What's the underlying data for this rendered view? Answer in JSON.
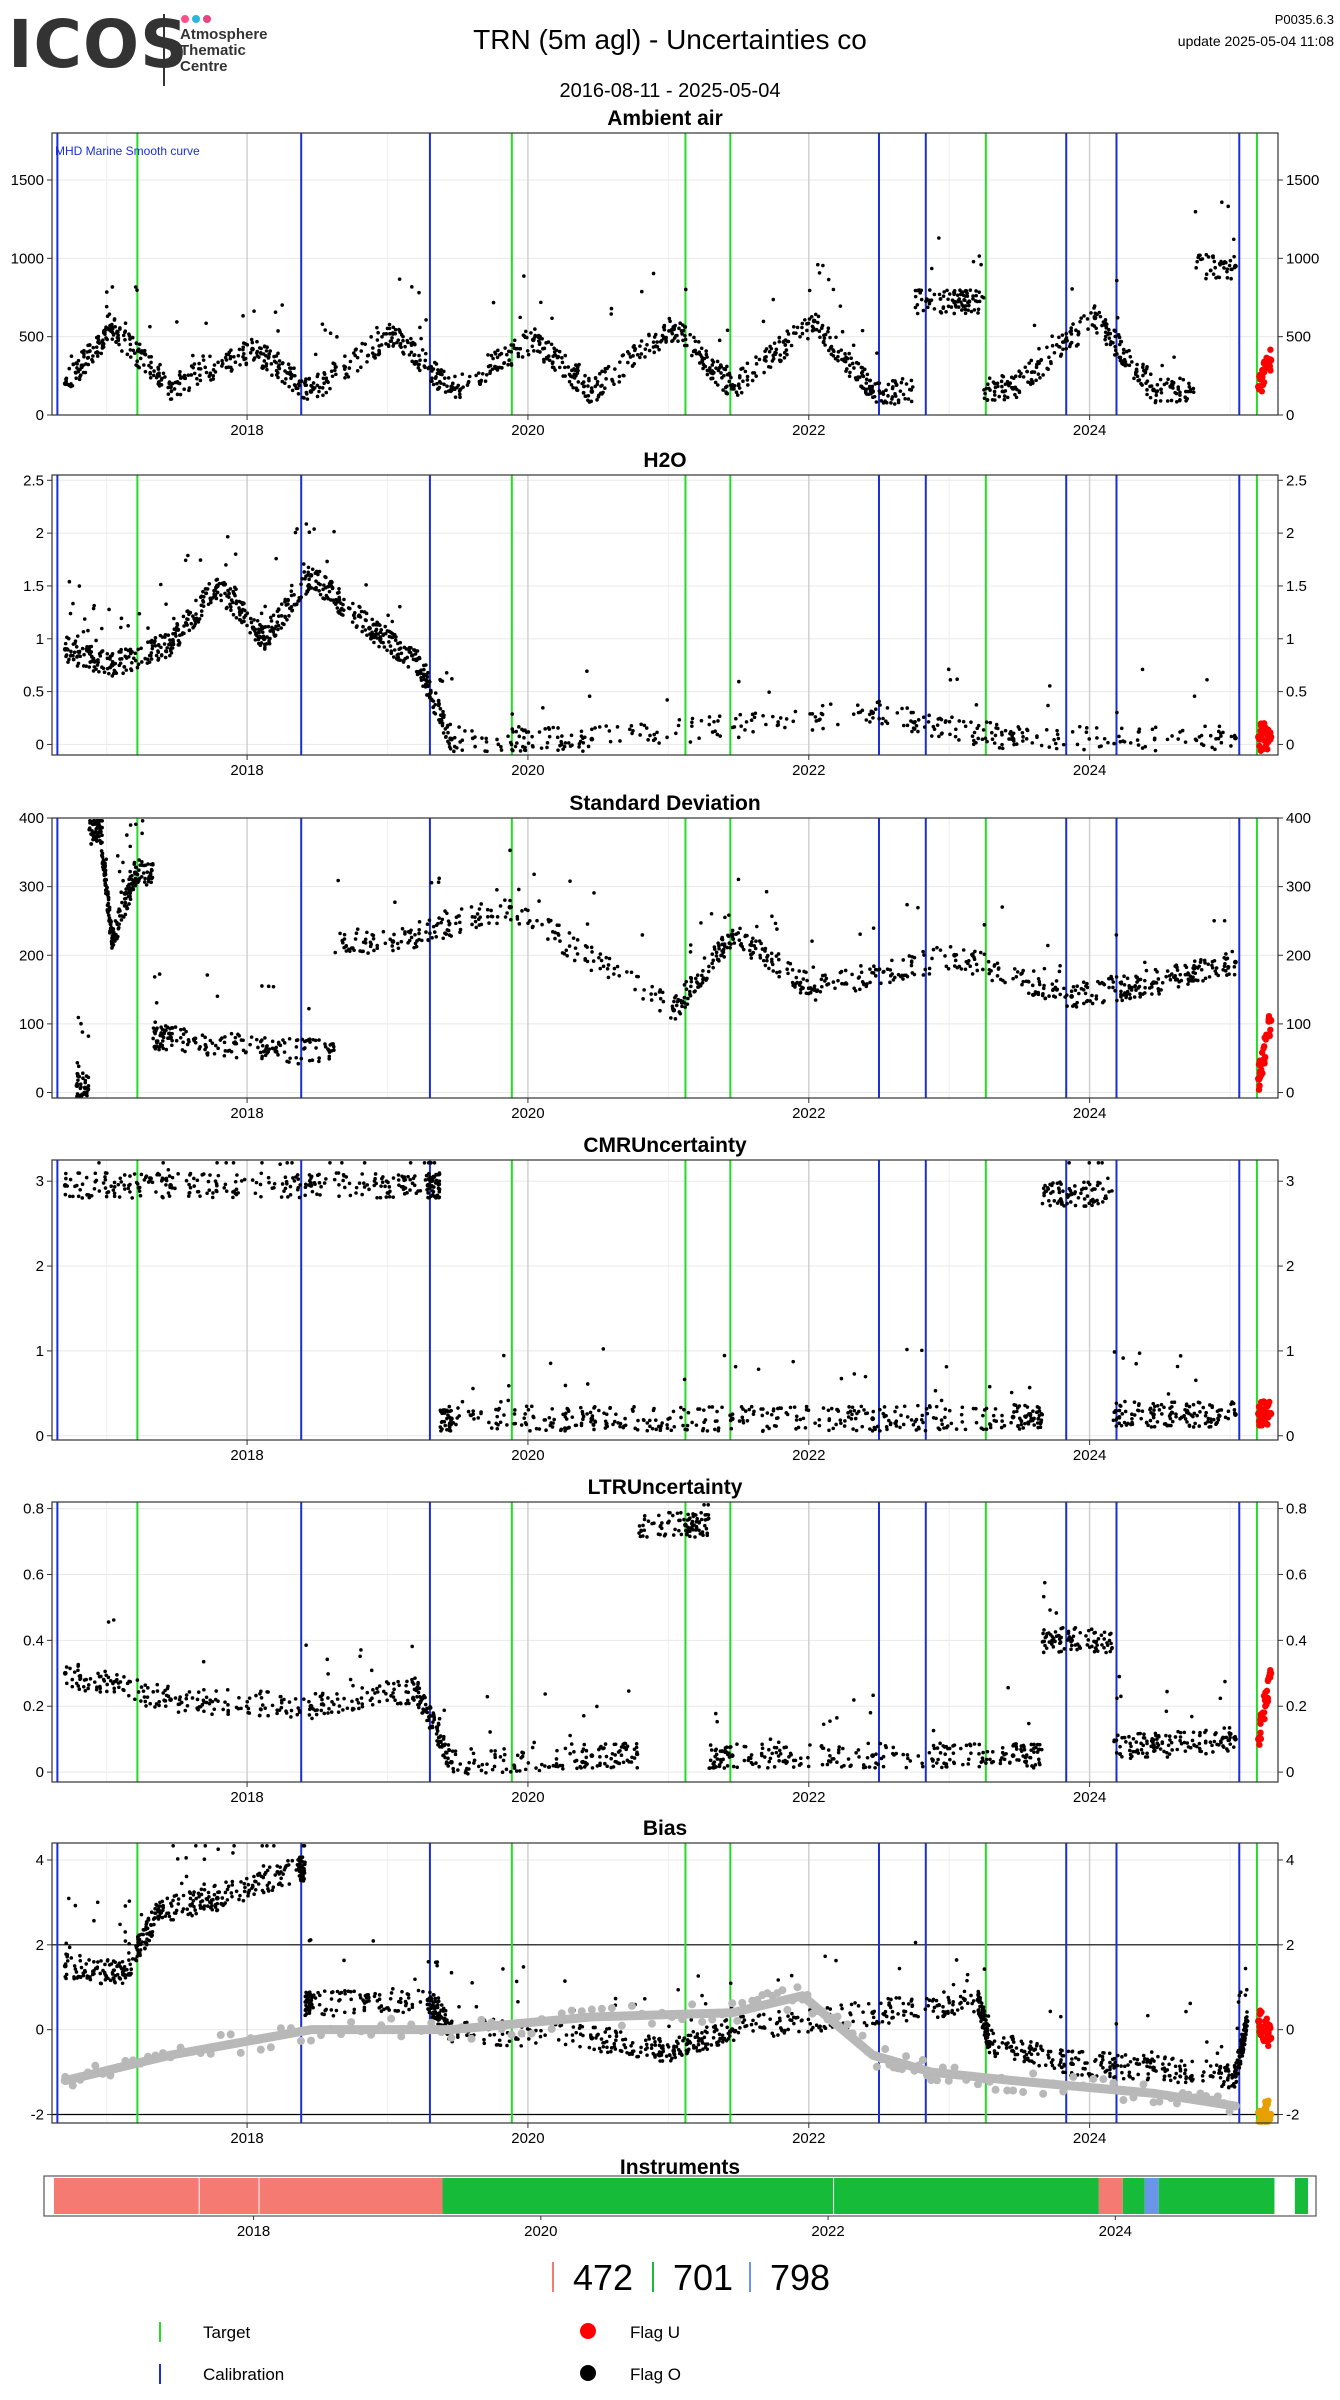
{
  "header": {
    "logo_text": "ICOS",
    "logo_sub": [
      "Atmosphere",
      "Thematic",
      "Centre"
    ],
    "title": "TRN  (5m agl) - Uncertainties co",
    "date_range": "2016-08-11 - 2025-05-04",
    "code": "P0035.6.3",
    "update": "update  2025-05-04 11:08"
  },
  "colors": {
    "target": "#22dd22",
    "calibration": "#1a2fd6",
    "flag_u": "#ff0000",
    "flag_o": "#000000",
    "smooth": "#b8b8b8",
    "bias_orange": "#e8a000",
    "instrument_472": "#f47a72",
    "instrument_701": "#16bb3a",
    "instrument_798": "#6a96ea"
  },
  "chart_data": [
    {
      "type": "scatter",
      "title": "Ambient air",
      "annotation": "MHD Marine Smooth curve",
      "x_range": [
        "2016-08-11",
        "2025-05-04"
      ],
      "ylim": [
        0,
        1800
      ],
      "yticks": [
        0,
        500,
        1000,
        1500
      ],
      "xticks": [
        "2018",
        "2020",
        "2022",
        "2024"
      ],
      "grid": true,
      "series": [
        {
          "color_key": "flag_o",
          "values_x": [
            "2016-09",
            "2017-01",
            "2017-06",
            "2018-01",
            "2018-06",
            "2019-01",
            "2019-06",
            "2020-01",
            "2020-06",
            "2021-01",
            "2021-06",
            "2022-01",
            "2022-06",
            "2023-01",
            "2023-06",
            "2024-01",
            "2024-06",
            "2025-01"
          ],
          "values_y": [
            200,
            550,
            180,
            420,
            150,
            520,
            160,
            480,
            150,
            560,
            170,
            600,
            150,
            720,
            170,
            620,
            160,
            950
          ]
        },
        {
          "color_key": "flag_u",
          "values_x": [
            "2025-03",
            "2025-04"
          ],
          "values_y": [
            180,
            350
          ]
        }
      ]
    },
    {
      "type": "scatter",
      "title": "H2O",
      "x_range": [
        "2016-08-11",
        "2025-05-04"
      ],
      "ylim": [
        -0.1,
        2.55
      ],
      "yticks": [
        0.0,
        0.5,
        1.0,
        1.5,
        2.0,
        2.5
      ],
      "xticks": [
        "2018",
        "2020",
        "2022",
        "2024"
      ],
      "grid": true,
      "series": [
        {
          "color_key": "flag_o",
          "values_x": [
            "2016-09",
            "2017-01",
            "2017-06",
            "2017-10",
            "2018-02",
            "2018-06",
            "2018-11",
            "2019-03",
            "2019-06",
            "2020-06",
            "2022-06",
            "2023-06",
            "2025-01"
          ],
          "values_y": [
            0.9,
            0.75,
            0.95,
            1.5,
            1.0,
            1.6,
            1.1,
            0.8,
            0.05,
            0.05,
            0.3,
            0.05,
            0.06
          ]
        },
        {
          "color_key": "flag_u",
          "values_x": [
            "2025-03",
            "2025-04"
          ],
          "values_y": [
            0.07,
            0.07
          ]
        }
      ]
    },
    {
      "type": "scatter",
      "title": "Standard Deviation",
      "x_range": [
        "2016-08-11",
        "2025-05-04"
      ],
      "ylim": [
        -8,
        400
      ],
      "yticks": [
        0,
        100,
        200,
        300,
        400
      ],
      "xticks": [
        "2018",
        "2020",
        "2022",
        "2024"
      ],
      "grid": true,
      "series": [
        {
          "color_key": "flag_o",
          "values_x": [
            "2016-10",
            "2016-12",
            "2017-01",
            "2017-03",
            "2017-06",
            "2018-03",
            "2019-01",
            "2019-11",
            "2021-01",
            "2021-06",
            "2022-01",
            "2023-01",
            "2023-11",
            "2024-06",
            "2025-01"
          ],
          "values_y": [
            10,
            380,
            220,
            320,
            80,
            60,
            220,
            270,
            120,
            230,
            150,
            200,
            140,
            160,
            190
          ]
        },
        {
          "color_key": "flag_u",
          "values_x": [
            "2025-03",
            "2025-04"
          ],
          "values_y": [
            20,
            105
          ]
        }
      ]
    },
    {
      "type": "scatter",
      "title": "CMRUncertainty",
      "x_range": [
        "2016-08-11",
        "2025-05-04"
      ],
      "ylim": [
        -0.05,
        3.25
      ],
      "yticks": [
        0,
        1,
        2,
        3
      ],
      "xticks": [
        "2018",
        "2020",
        "2022",
        "2024"
      ],
      "grid": true,
      "series": [
        {
          "color_key": "flag_o",
          "values_x": [
            "2016-09",
            "2017-06",
            "2018-06",
            "2019-04",
            "2019-06",
            "2020-06",
            "2021-06",
            "2022-06",
            "2023-06",
            "2023-11",
            "2024-06",
            "2025-01"
          ],
          "values_y": [
            2.95,
            2.95,
            2.95,
            2.95,
            0.2,
            0.2,
            0.2,
            0.2,
            0.22,
            2.85,
            0.25,
            0.25
          ]
        },
        {
          "color_key": "flag_u",
          "values_x": [
            "2025-03",
            "2025-04"
          ],
          "values_y": [
            0.26,
            0.26
          ]
        }
      ]
    },
    {
      "type": "scatter",
      "title": "LTRUncertainty",
      "x_range": [
        "2016-08-11",
        "2025-05-04"
      ],
      "ylim": [
        -0.03,
        0.82
      ],
      "yticks": [
        0.0,
        0.2,
        0.4,
        0.6,
        0.8
      ],
      "xticks": [
        "2018",
        "2020",
        "2022",
        "2024"
      ],
      "grid": true,
      "series": [
        {
          "color_key": "flag_o",
          "values_x": [
            "2016-09",
            "2017-06",
            "2018-06",
            "2019-03",
            "2019-06",
            "2020-06",
            "2021-02",
            "2021-06",
            "2022-06",
            "2023-06",
            "2023-11",
            "2024-06",
            "2025-01"
          ],
          "values_y": [
            0.3,
            0.22,
            0.2,
            0.25,
            0.03,
            0.05,
            0.75,
            0.05,
            0.05,
            0.05,
            0.4,
            0.08,
            0.1
          ]
        },
        {
          "color_key": "flag_u",
          "values_x": [
            "2025-03",
            "2025-04"
          ],
          "values_y": [
            0.1,
            0.3
          ]
        }
      ]
    },
    {
      "type": "line",
      "title": "Bias",
      "x_range": [
        "2016-08-11",
        "2025-05-04"
      ],
      "ylim": [
        -2.2,
        4.4
      ],
      "yticks": [
        -2,
        0,
        2,
        4
      ],
      "xticks": [
        "2018",
        "2020",
        "2022",
        "2024"
      ],
      "hlines": [
        2,
        -2
      ],
      "grid": true,
      "series": [
        {
          "color_key": "flag_o",
          "values_x": [
            "2016-09",
            "2017-02",
            "2017-05",
            "2017-10",
            "2018-05",
            "2018-06",
            "2019-04",
            "2019-06",
            "2020-06",
            "2021-01",
            "2021-06",
            "2022-06",
            "2023-03",
            "2023-04",
            "2023-11",
            "2024-06",
            "2025-01",
            "2025-02"
          ],
          "values_y": [
            1.5,
            1.3,
            2.8,
            3.1,
            3.8,
            0.6,
            0.7,
            0.0,
            -0.2,
            -0.5,
            0.0,
            0.4,
            0.7,
            -0.3,
            -0.8,
            -0.9,
            -1.1,
            0.2
          ]
        },
        {
          "color_key": "smooth",
          "values_x": [
            "2016-09",
            "2017-06",
            "2018-06",
            "2019-06",
            "2020-06",
            "2021-06",
            "2021-12",
            "2022-06",
            "2022-11",
            "2023-06",
            "2024-06",
            "2025-01"
          ],
          "values_y": [
            -1.2,
            -0.6,
            0.0,
            0.0,
            0.3,
            0.4,
            0.8,
            -0.6,
            -1.0,
            -1.2,
            -1.5,
            -1.8
          ]
        },
        {
          "color_key": "flag_u",
          "values_x": [
            "2025-03",
            "2025-04"
          ],
          "values_y": [
            0.2,
            -0.2
          ]
        },
        {
          "color_key": "bias_orange",
          "values_x": [
            "2025-03",
            "2025-04"
          ],
          "values_y": [
            -1.95,
            -2.0
          ]
        }
      ]
    }
  ],
  "target_dates": [
    "2017-03-20",
    "2019-11-20",
    "2021-02-15",
    "2021-06-10",
    "2023-04-05",
    "2025-03-10"
  ],
  "calibration_dates": [
    "2016-08-25",
    "2018-05-20",
    "2019-04-20",
    "2022-07-01",
    "2022-11-01",
    "2023-11-01",
    "2024-03-10",
    "2025-01-25"
  ],
  "instruments": {
    "title": "Instruments",
    "xticks": [
      "2018",
      "2020",
      "2022",
      "2024"
    ],
    "segments": [
      {
        "start": "2016-08-11",
        "end": "2019-04-25",
        "color_key": "instrument_472"
      },
      {
        "start": "2019-04-25",
        "end": "2023-11-20",
        "color_key": "instrument_701"
      },
      {
        "start": "2023-11-20",
        "end": "2024-01-20",
        "color_key": "instrument_472"
      },
      {
        "start": "2024-01-20",
        "end": "2024-03-15",
        "color_key": "instrument_701"
      },
      {
        "start": "2024-03-15",
        "end": "2024-04-20",
        "color_key": "instrument_798"
      },
      {
        "start": "2024-04-20",
        "end": "2025-02-10",
        "color_key": "instrument_701"
      },
      {
        "start": "2025-04-01",
        "end": "2025-05-04",
        "color_key": "instrument_701"
      }
    ],
    "ids": [
      "472",
      "701",
      "798"
    ]
  },
  "legend": {
    "target": "Target",
    "calibration": "Calibration",
    "flag_u": "Flag U",
    "flag_o": "Flag O"
  }
}
